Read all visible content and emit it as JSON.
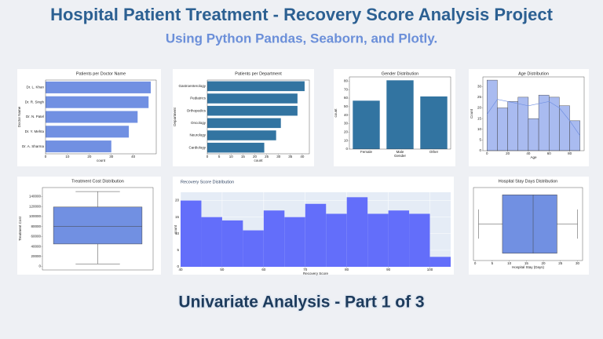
{
  "title": "Hospital Patient Treatment - Recovery Score Analysis Project",
  "subtitle": "Using Python Pandas, Seaborn, and Plotly.",
  "footer": "Univariate Analysis - Part 1 of 3",
  "chart_data": [
    {
      "type": "hbar",
      "title": "Patients per Doctor Name",
      "x_label": "count",
      "y_label": "Doctor Name",
      "categories": [
        "Dr. L. Khan",
        "Dr. R. Singh",
        "Dr. N. Patel",
        "Dr. Y. Mehta",
        "Dr. A. Sharma"
      ],
      "values": [
        48,
        47,
        42,
        38,
        30
      ],
      "color": "#7190e2",
      "xlim": [
        0,
        50.5
      ],
      "xticks": [
        0,
        10,
        20,
        30,
        40
      ]
    },
    {
      "type": "hbar",
      "title": "Patients per Department",
      "x_label": "count",
      "y_label": "Department",
      "categories": [
        "Gastroenterology",
        "Pediatrics",
        "Orthopedics",
        "Oncology",
        "Neurology",
        "Cardiology"
      ],
      "values": [
        41,
        38,
        38,
        31,
        29,
        24
      ],
      "color": "#3274a1",
      "xlim": [
        0,
        43
      ],
      "xticks": [
        0,
        5,
        10,
        15,
        20,
        25,
        30,
        35,
        40
      ]
    },
    {
      "type": "bar",
      "title": "Gender Distribution",
      "x_label": "Gender",
      "y_label": "count",
      "categories": [
        "Female",
        "Male",
        "Other"
      ],
      "values": [
        57,
        81,
        62
      ],
      "color": "#3274a1",
      "ylim": [
        0,
        85
      ],
      "yticks": [
        0,
        10,
        20,
        30,
        40,
        50,
        60,
        70,
        80
      ]
    },
    {
      "type": "histogram",
      "title": "Age Distribution",
      "x_label": "Age",
      "y_label": "Count",
      "bins": [
        0,
        10,
        20,
        30,
        40,
        50,
        60,
        70,
        80,
        90
      ],
      "counts": [
        33,
        20,
        23,
        25,
        15,
        26,
        25,
        21,
        14
      ],
      "color": "#a9bbf0",
      "edge_color": "#333333",
      "kde": {
        "x": [
          0,
          10,
          20,
          30,
          40,
          50,
          60,
          70,
          80,
          90
        ],
        "y": [
          17,
          24,
          23,
          22,
          21,
          22,
          23,
          20,
          14,
          7
        ],
        "color": "#7190e2"
      },
      "xlim": [
        -4,
        94
      ],
      "xticks": [
        0,
        20,
        40,
        60,
        80
      ],
      "ylim": [
        0,
        34.5
      ],
      "yticks": [
        0,
        5,
        10,
        15,
        20,
        25,
        30
      ]
    },
    {
      "type": "box",
      "orientation": "vertical",
      "title": "Treatment Cost Distribution",
      "y_label": "Treatment Cost",
      "min": 5000,
      "q1": 45000,
      "median": 80000,
      "q3": 119000,
      "max": 150000,
      "color": "#7190e2",
      "ylim": [
        -7000,
        158000
      ],
      "yticks": [
        0,
        20000,
        40000,
        60000,
        80000,
        100000,
        120000,
        140000
      ]
    },
    {
      "type": "histogram",
      "title": "Recovery Score Distribution",
      "x_label": "Recovery Score",
      "y_label": "count",
      "bins": [
        40,
        45,
        50,
        55,
        60,
        65,
        70,
        75,
        80,
        85,
        90,
        95,
        100,
        105
      ],
      "counts": [
        20,
        15,
        14,
        11,
        17,
        15,
        19,
        16,
        21,
        16,
        17,
        16,
        3
      ],
      "color": "#636efa",
      "background": "#e5ecf6",
      "xlim": [
        40,
        105
      ],
      "xticks": [
        40,
        50,
        60,
        70,
        80,
        90,
        100
      ],
      "ylim": [
        0,
        22.5
      ],
      "yticks": [
        0,
        5,
        10,
        15,
        20
      ]
    },
    {
      "type": "box",
      "orientation": "horizontal",
      "title": "Hospital Stay Days Distribution",
      "x_label": "Hospital Stay (Days)",
      "min": 1,
      "q1": 8,
      "median": 17,
      "q3": 24,
      "max": 30,
      "color": "#7190e2",
      "xlim": [
        -0.5,
        31.5
      ],
      "xticks": [
        0,
        5,
        10,
        15,
        20,
        25,
        30
      ]
    }
  ]
}
